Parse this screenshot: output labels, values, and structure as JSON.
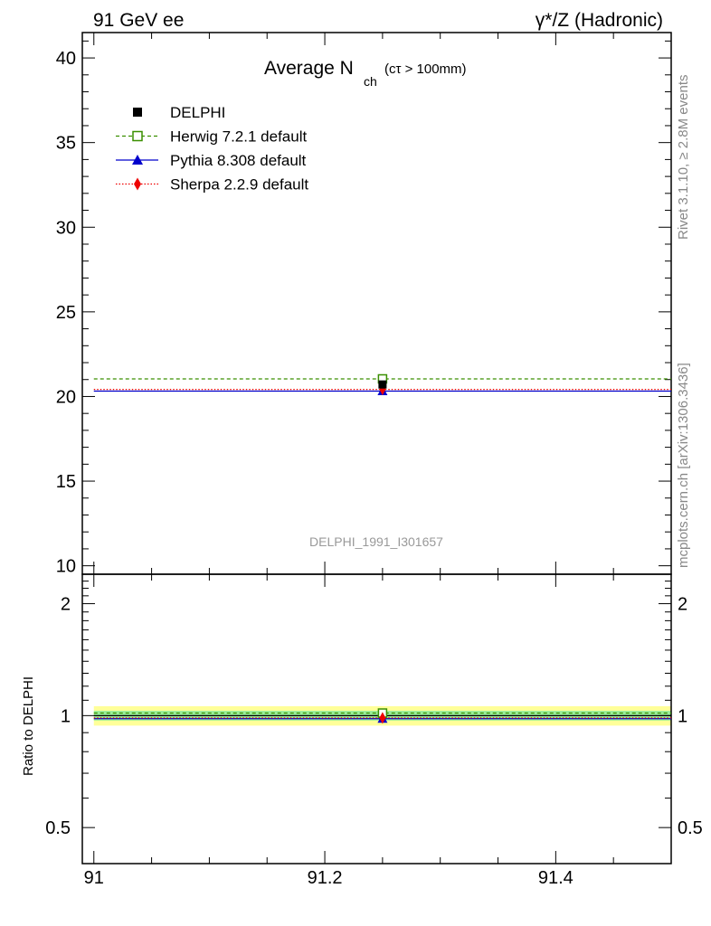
{
  "header": {
    "left": "91 GeV ee",
    "right": "γ*/Z (Hadronic)"
  },
  "side_labels": {
    "rivet": "Rivet 3.1.10, ≥ 2.8M events",
    "mcplots": "mcplots.cern.ch [arXiv:1306.3436]"
  },
  "title": {
    "main": "Average N",
    "sub": "ch",
    "cond": "(cτ > 100mm)"
  },
  "watermark": "DELPHI_1991_I301657",
  "colors": {
    "delphi": "#000000",
    "herwig": "#3a8f00",
    "pythia": "#0000cc",
    "sherpa": "#ee0000",
    "band_outer": "#ffff99",
    "band_inner": "#99ee99"
  },
  "chart_data": [
    {
      "type": "scatter",
      "panel": "main",
      "x_range": [
        91.0,
        91.5
      ],
      "ylim": [
        9.5,
        41.5
      ],
      "yticks": [
        10,
        15,
        20,
        25,
        30,
        35,
        40
      ],
      "ytick_labels": [
        "10",
        "15",
        "20",
        "25",
        "30",
        "35",
        "40"
      ],
      "legend_position": "top-left",
      "series": [
        {
          "name": "DELPHI",
          "style": "marker",
          "marker": "square-filled",
          "x": [
            91.25
          ],
          "y": [
            20.71
          ]
        },
        {
          "name": "Herwig 7.2.1 default",
          "style": "dashed",
          "marker": "square-open",
          "x": [
            91.25
          ],
          "y": [
            21.04
          ]
        },
        {
          "name": "Pythia 8.308 default",
          "style": "solid",
          "marker": "triangle",
          "x": [
            91.25
          ],
          "y": [
            20.32
          ]
        },
        {
          "name": "Sherpa 2.2.9 default",
          "style": "dotted",
          "marker": "diamond",
          "x": [
            91.25
          ],
          "y": [
            20.42
          ]
        }
      ]
    },
    {
      "type": "line",
      "panel": "ratio",
      "ylabel": "Ratio to DELPHI",
      "xlim": [
        90.99,
        91.5
      ],
      "ylim": [
        0.4,
        2.4
      ],
      "scale": "log",
      "yticks": [
        0.5,
        1,
        2
      ],
      "ytick_labels": [
        "0.5",
        "1",
        "2"
      ],
      "xticks": [
        91.0,
        91.2,
        91.4
      ],
      "xtick_labels": [
        "91",
        "91.2",
        "91.4"
      ],
      "band_inner": [
        0.97,
        1.03
      ],
      "band_outer": [
        0.94,
        1.06
      ],
      "series": [
        {
          "name": "Herwig 7.2.1 default",
          "y": 1.016
        },
        {
          "name": "Pythia 8.308 default",
          "y": 0.981
        },
        {
          "name": "Sherpa 2.2.9 default",
          "y": 0.986
        }
      ]
    }
  ]
}
